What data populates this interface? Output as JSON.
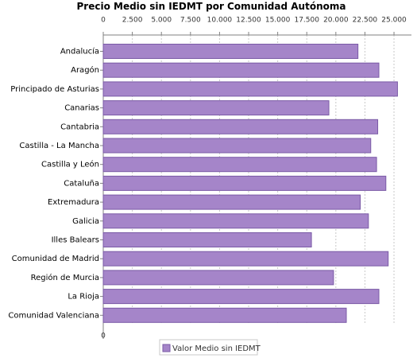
{
  "chart_data": {
    "type": "bar",
    "orientation": "horizontal",
    "title": "Precio Medio sin IEDMT por Comunidad Autónoma",
    "xaxis_position": "top",
    "xlim": [
      0,
      26500
    ],
    "xticks": [
      0,
      2500,
      5000,
      7500,
      10000,
      12500,
      15000,
      17500,
      20000,
      22500,
      25000
    ],
    "xtick_labels": [
      "0",
      "2.500",
      "5.000",
      "7.500",
      "10.000",
      "12.500",
      "15.000",
      "17.500",
      "20.000",
      "22.500",
      "25.000"
    ],
    "grid": true,
    "legend_position": "bottom",
    "categories": [
      "Andalucía",
      "Aragón",
      "Principado de Asturias",
      "Canarias",
      "Cantabria",
      "Castilla - La Mancha",
      "Castilla y León",
      "Cataluña",
      "Extremadura",
      "Galicia",
      "Illes Balears",
      "Comunidad de Madrid",
      "Región de Murcia",
      "La Rioja",
      "Comunidad Valenciana"
    ],
    "series": [
      {
        "name": "Valor Medio sin IEDMT",
        "color": "#a585c9",
        "values": [
          21900,
          23700,
          25300,
          19400,
          23600,
          23000,
          23500,
          24300,
          22100,
          22800,
          17900,
          24500,
          19800,
          23700,
          20900
        ]
      }
    ]
  }
}
